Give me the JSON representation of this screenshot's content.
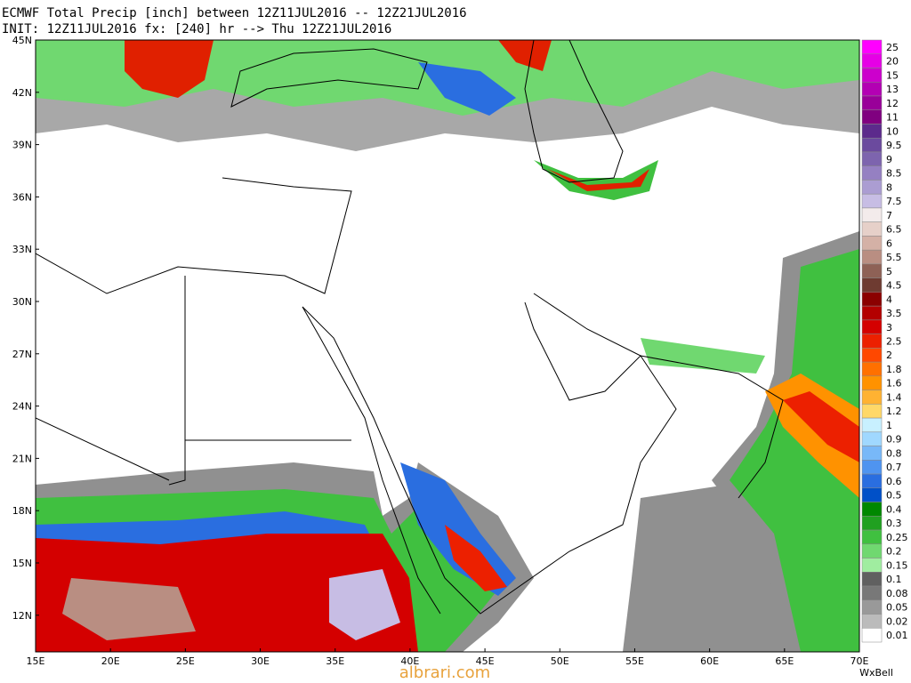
{
  "header": {
    "line1": "ECMWF Total Precip [inch] between 12Z11JUL2016 -- 12Z21JUL2016",
    "line2": "INIT: 12Z11JUL2016 fx: [240] hr --> Thu 12Z21JUL2016"
  },
  "map": {
    "latitude_labels": [
      "45N",
      "42N",
      "39N",
      "36N",
      "33N",
      "30N",
      "27N",
      "24N",
      "21N",
      "18N",
      "15N",
      "12N"
    ],
    "longitude_labels": [
      "15E",
      "20E",
      "25E",
      "30E",
      "35E",
      "40E",
      "45E",
      "50E",
      "55E",
      "60E",
      "65E",
      "70E"
    ]
  },
  "legend": {
    "levels": [
      {
        "label": "25",
        "color": "#ff00ff"
      },
      {
        "label": "20",
        "color": "#e600e6"
      },
      {
        "label": "15",
        "color": "#cc00cc"
      },
      {
        "label": "13",
        "color": "#b300b3"
      },
      {
        "label": "12",
        "color": "#990099"
      },
      {
        "label": "11",
        "color": "#800080"
      },
      {
        "label": "10",
        "color": "#5c2a8c"
      },
      {
        "label": "9.5",
        "color": "#6b4a9e"
      },
      {
        "label": "9",
        "color": "#7d64ae"
      },
      {
        "label": "8.5",
        "color": "#9580c2"
      },
      {
        "label": "8",
        "color": "#ab9dd2"
      },
      {
        "label": "7.5",
        "color": "#c7bde4"
      },
      {
        "label": "7",
        "color": "#f3ebeb"
      },
      {
        "label": "6.5",
        "color": "#e6d0c9"
      },
      {
        "label": "6",
        "color": "#d4b1a6"
      },
      {
        "label": "5.5",
        "color": "#b98e82"
      },
      {
        "label": "5",
        "color": "#8e6156"
      },
      {
        "label": "4.5",
        "color": "#6e3b31"
      },
      {
        "label": "4",
        "color": "#8b0000"
      },
      {
        "label": "3.5",
        "color": "#b30000"
      },
      {
        "label": "3",
        "color": "#d40000"
      },
      {
        "label": "2.5",
        "color": "#ec2000"
      },
      {
        "label": "2",
        "color": "#ff4800"
      },
      {
        "label": "1.8",
        "color": "#ff7000"
      },
      {
        "label": "1.6",
        "color": "#ff9200"
      },
      {
        "label": "1.4",
        "color": "#ffb232"
      },
      {
        "label": "1.2",
        "color": "#ffd868"
      },
      {
        "label": "1",
        "color": "#c8f0ff"
      },
      {
        "label": "0.9",
        "color": "#a0d8ff"
      },
      {
        "label": "0.8",
        "color": "#78b8f8"
      },
      {
        "label": "0.7",
        "color": "#4f94f0"
      },
      {
        "label": "0.6",
        "color": "#2a6ee0"
      },
      {
        "label": "0.5",
        "color": "#0050c8"
      },
      {
        "label": "0.4",
        "color": "#008800"
      },
      {
        "label": "0.3",
        "color": "#20a020"
      },
      {
        "label": "0.25",
        "color": "#40c040"
      },
      {
        "label": "0.2",
        "color": "#70d870"
      },
      {
        "label": "0.15",
        "color": "#a0eda0"
      },
      {
        "label": "0.1",
        "color": "#606060"
      },
      {
        "label": "0.08",
        "color": "#787878"
      },
      {
        "label": "0.05",
        "color": "#999999"
      },
      {
        "label": "0.02",
        "color": "#bbbbbb"
      },
      {
        "label": "0.01",
        "color": "#ffffff"
      }
    ]
  },
  "footer": {
    "brand": "WxBell",
    "watermark": "albrari.com"
  }
}
